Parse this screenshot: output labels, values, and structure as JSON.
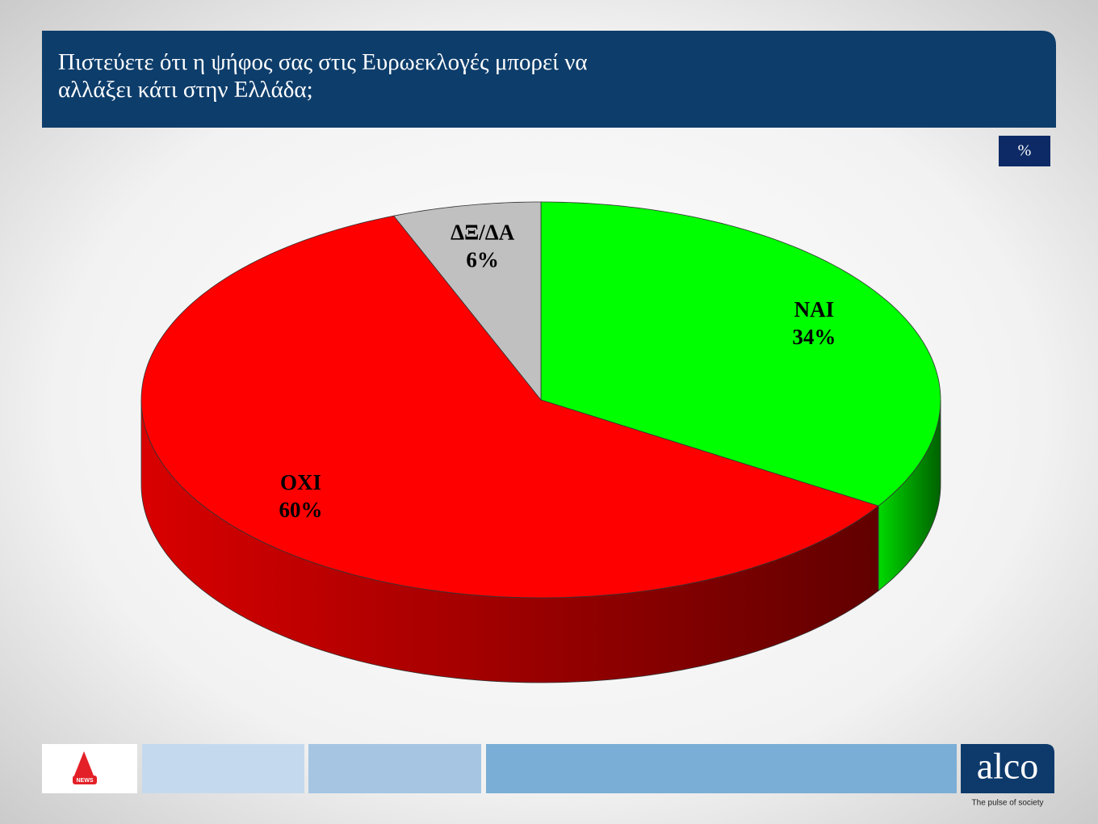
{
  "chart_data": {
    "type": "pie3d",
    "title": "Πιστεύετε ότι η ψήφος σας στις Ευρωεκλογές μπορεί να αλλάξει κάτι στην Ελλάδα;",
    "unit": "%",
    "categories": [
      "ΝΑΙ",
      "ΟΧΙ",
      "ΔΞ/ΔΑ"
    ],
    "values": [
      34,
      60,
      6
    ],
    "value_labels": [
      "34%",
      "60%",
      "6%"
    ],
    "colors": [
      "#00ff00",
      "#ff0000",
      "#c0c0c0"
    ]
  },
  "footer": {
    "news": "NEWS",
    "brand": "alco",
    "tagline": "The pulse of society"
  }
}
